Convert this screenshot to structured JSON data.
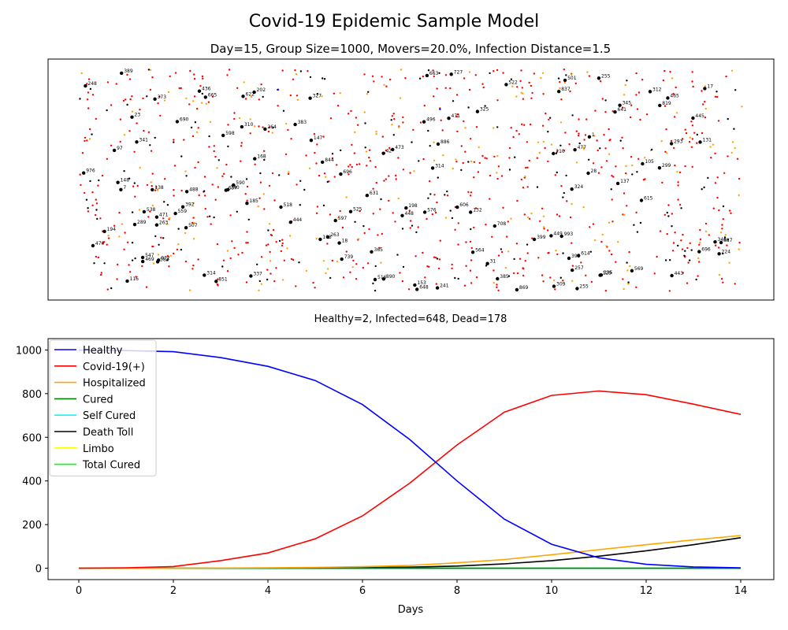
{
  "figure": {
    "title": "Covid-19 Epidemic Sample Model",
    "scatter_title": "Day=15, Group Size=1000, Movers=20.0%, Infection Distance=1.5",
    "status_text": "Healthy=2, Infected=648, Dead=178"
  },
  "colors": {
    "healthy": "#0000ff",
    "covid_positive": "#ff0000",
    "hospitalized": "#ffa500",
    "cured": "#008000",
    "self_cured": "#00ffff",
    "death_toll": "#000000",
    "limbo": "#ffff00",
    "total_cured": "#00ff00"
  },
  "chart_data": [
    {
      "type": "scatter",
      "title": "Day=15, Group Size=1000, Movers=20.0%, Infection Distance=1.5",
      "axes_visible": false,
      "grid": false,
      "legend": "none",
      "population": 1000,
      "counts": {
        "healthy": 2,
        "infected": 648,
        "dead": 178,
        "hospitalized": 172
      },
      "labeled_dead_ids": [
        "496",
        "202",
        "465",
        "665",
        "185",
        "138",
        "137",
        "373",
        "310",
        "312",
        "28",
        "501",
        "392",
        "696",
        "103",
        "224",
        "473",
        "837",
        "583",
        "365",
        "547",
        "147",
        "17",
        "615",
        "255",
        "346",
        "614",
        "507",
        "395",
        "241",
        "708",
        "631",
        "264",
        "471",
        "18",
        "436",
        "263",
        "148",
        "168",
        "648",
        "663",
        "97",
        "325",
        "337",
        "597",
        "976",
        "525",
        "129",
        "606",
        "538",
        "739",
        "488",
        "255",
        "993",
        "449",
        "444",
        "7",
        "445",
        "448",
        "385",
        "399",
        "887",
        "389",
        "340",
        "153",
        "132",
        "690",
        "598",
        "257",
        "727",
        "341",
        "516",
        "42",
        "116",
        "105",
        "641",
        "248",
        "309",
        "289",
        "471",
        "383",
        "345",
        "569",
        "327",
        "622",
        "564",
        "972",
        "210",
        "869",
        "23",
        "890",
        "443",
        "198",
        "518",
        "263",
        "696",
        "886",
        "469",
        "522",
        "477",
        "819",
        "194",
        "335",
        "470",
        "324",
        "299",
        "131",
        "851",
        "559",
        "657",
        "314",
        "314",
        "576",
        "1",
        "31",
        "844",
        "293",
        "590"
      ]
    },
    {
      "type": "line",
      "x": [
        0,
        1,
        2,
        3,
        4,
        5,
        6,
        7,
        8,
        9,
        10,
        11,
        12,
        13,
        14
      ],
      "xlabel": "Days",
      "ylabel": "",
      "xlim": [
        -0.65,
        14.7
      ],
      "ylim": [
        -52,
        1052
      ],
      "xticks": [
        0,
        2,
        4,
        6,
        8,
        10,
        12,
        14
      ],
      "yticks": [
        0,
        200,
        400,
        600,
        800,
        1000
      ],
      "grid": false,
      "legend": "upper-left",
      "series": [
        {
          "name": "Healthy",
          "color": "#0000ff",
          "values": [
            1000,
            997,
            992,
            965,
            925,
            860,
            750,
            590,
            400,
            225,
            110,
            48,
            18,
            6,
            2
          ]
        },
        {
          "name": "Covid-19(+)",
          "color": "#ff0000",
          "values": [
            0,
            2,
            8,
            35,
            70,
            135,
            240,
            390,
            565,
            715,
            792,
            812,
            795,
            752,
            705
          ]
        },
        {
          "name": "Hospitalized",
          "color": "#ffa500",
          "values": [
            0,
            0,
            0,
            1,
            2,
            4,
            7,
            13,
            25,
            40,
            62,
            85,
            108,
            130,
            150
          ]
        },
        {
          "name": "Cured",
          "color": "#008000",
          "values": [
            0,
            0,
            0,
            0,
            0,
            0,
            0,
            0,
            0,
            0,
            0,
            0,
            0,
            0,
            0
          ]
        },
        {
          "name": "Self Cured",
          "color": "#00ffff",
          "values": [
            0,
            0,
            0,
            0,
            0,
            0,
            0,
            0,
            0,
            0,
            0,
            0,
            0,
            0,
            0
          ]
        },
        {
          "name": "Death Toll",
          "color": "#000000",
          "values": [
            0,
            0,
            0,
            0,
            0,
            1,
            3,
            5,
            10,
            20,
            35,
            55,
            80,
            108,
            140
          ]
        },
        {
          "name": "Limbo",
          "color": "#ffff00",
          "values": [
            0,
            0,
            0,
            0,
            0,
            0,
            0,
            0,
            0,
            0,
            0,
            0,
            0,
            0,
            0
          ]
        },
        {
          "name": "Total Cured",
          "color": "#00ff00",
          "values": [
            0,
            0,
            0,
            0,
            0,
            0,
            0,
            0,
            0,
            0,
            0,
            0,
            0,
            0,
            0
          ]
        }
      ]
    }
  ]
}
